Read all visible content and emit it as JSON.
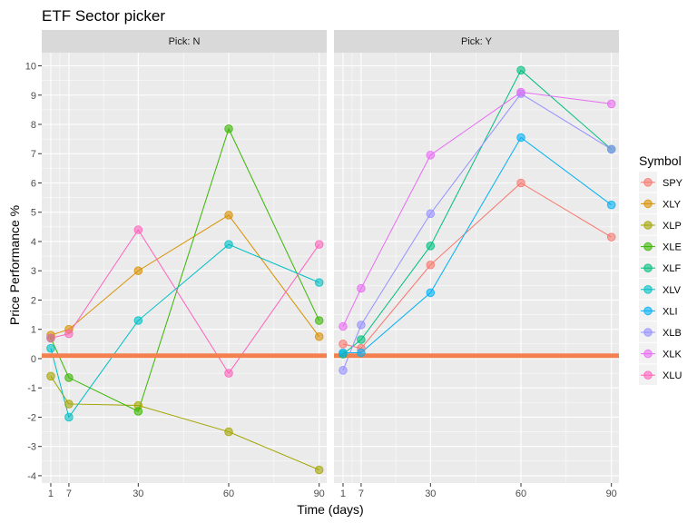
{
  "chart_data": {
    "type": "line",
    "title": "ETF Sector picker",
    "xlabel": "Time (days)",
    "ylabel": "Price Performance %",
    "x_ticks": [
      1,
      7,
      30,
      60,
      90
    ],
    "y_ticks": [
      -4,
      -3,
      -2,
      -1,
      0,
      1,
      2,
      3,
      4,
      5,
      6,
      7,
      8,
      9,
      10
    ],
    "xlim": [
      -2,
      92.5
    ],
    "ylim": [
      -4.25,
      10.45
    ],
    "grid": true,
    "legend_position": "right",
    "legend_title": "Symbol",
    "reference_line": {
      "y": 0.1,
      "color": "#f4804f"
    },
    "panels": [
      {
        "label": "Pick: N",
        "series": [
          {
            "name": "XLY",
            "x": [
              1,
              7,
              30,
              60,
              90
            ],
            "values": [
              0.8,
              1.0,
              3.0,
              4.9,
              0.75
            ]
          },
          {
            "name": "XLP",
            "x": [
              1,
              7,
              30,
              60,
              90
            ],
            "values": [
              -0.6,
              -1.55,
              -1.6,
              -2.5,
              -3.8
            ]
          },
          {
            "name": "XLE",
            "x": [
              1,
              7,
              30,
              60,
              90
            ],
            "values": [
              0.7,
              -0.65,
              -1.8,
              7.85,
              1.3
            ]
          },
          {
            "name": "XLV",
            "x": [
              1,
              7,
              30,
              60,
              90
            ],
            "values": [
              0.35,
              -2.0,
              1.3,
              3.9,
              2.6
            ]
          },
          {
            "name": "XLU",
            "x": [
              1,
              7,
              30,
              60,
              90
            ],
            "values": [
              0.7,
              0.85,
              4.4,
              -0.5,
              3.9
            ]
          }
        ]
      },
      {
        "label": "Pick: Y",
        "series": [
          {
            "name": "SPY",
            "x": [
              1,
              7,
              30,
              60,
              90
            ],
            "values": [
              0.5,
              0.35,
              3.2,
              6.0,
              4.15
            ]
          },
          {
            "name": "XLF",
            "x": [
              1,
              7,
              30,
              60,
              90
            ],
            "values": [
              0.15,
              0.65,
              3.85,
              9.85,
              7.15
            ]
          },
          {
            "name": "XLI",
            "x": [
              1,
              7,
              30,
              60,
              90
            ],
            "values": [
              0.2,
              0.2,
              2.25,
              7.55,
              5.25
            ]
          },
          {
            "name": "XLB",
            "x": [
              1,
              7,
              30,
              60,
              90
            ],
            "values": [
              -0.4,
              1.15,
              4.95,
              9.05,
              7.15
            ]
          },
          {
            "name": "XLK",
            "x": [
              1,
              7,
              30,
              60,
              90
            ],
            "values": [
              1.1,
              2.4,
              6.95,
              9.1,
              8.7
            ]
          }
        ]
      }
    ],
    "legend": [
      {
        "name": "SPY",
        "color": "#F8766D"
      },
      {
        "name": "XLY",
        "color": "#D89000"
      },
      {
        "name": "XLP",
        "color": "#A3A500"
      },
      {
        "name": "XLE",
        "color": "#39B600"
      },
      {
        "name": "XLF",
        "color": "#00BF7D"
      },
      {
        "name": "XLV",
        "color": "#00BFC4"
      },
      {
        "name": "XLI",
        "color": "#00B0F6"
      },
      {
        "name": "XLB",
        "color": "#9590FF"
      },
      {
        "name": "XLK",
        "color": "#E76BF3"
      },
      {
        "name": "XLU",
        "color": "#FF62BC"
      }
    ]
  }
}
